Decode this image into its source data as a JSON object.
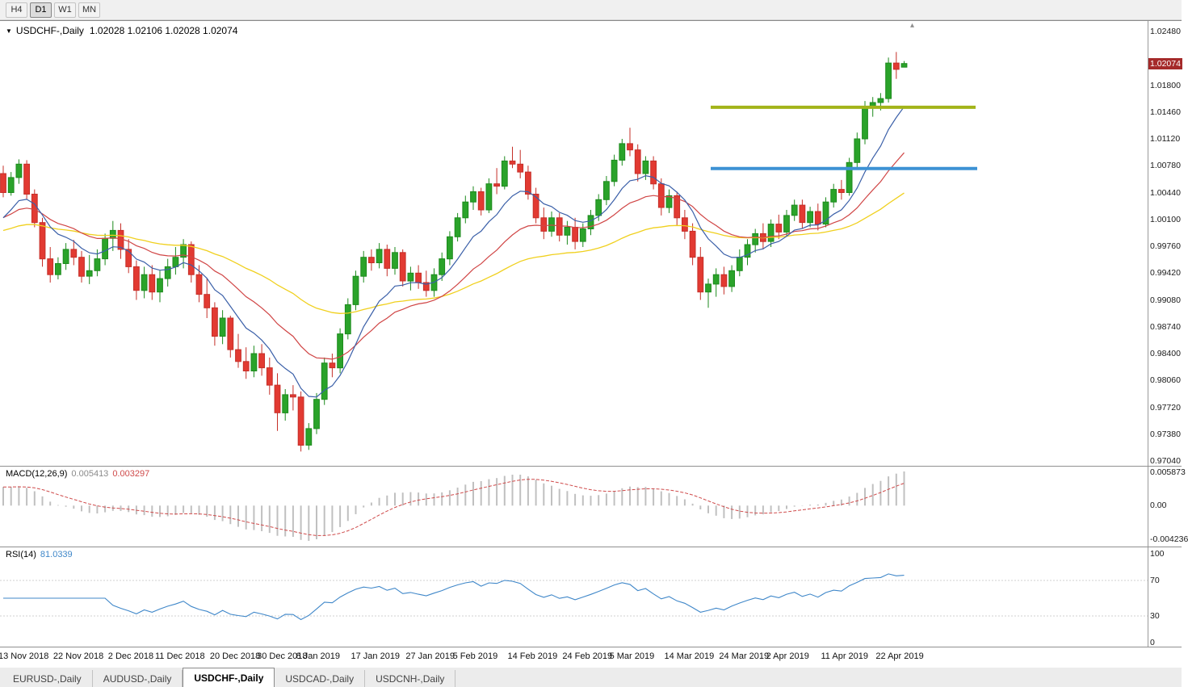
{
  "toolbar": {
    "timeframes": [
      {
        "label": "H4",
        "active": false
      },
      {
        "label": "D1",
        "active": true
      },
      {
        "label": "W1",
        "active": false
      },
      {
        "label": "MN",
        "active": false
      }
    ]
  },
  "chart": {
    "collapse_marker": "▼",
    "title": "USDCHF-,Daily",
    "ohlc_text": "1.02028 1.02106 1.02028 1.02074",
    "price_badge": "1.02074",
    "shift_marker": "▴",
    "price_axis": [
      "1.02480",
      "1.01800",
      "1.01460",
      "1.01120",
      "1.00780",
      "1.00440",
      "1.00100",
      "0.99760",
      "0.99420",
      "0.99080",
      "0.98740",
      "0.98400",
      "0.98060",
      "0.97720",
      "0.97380",
      "0.97040"
    ]
  },
  "macd": {
    "label": "MACD(12,26,9)",
    "value_main": "0.005413",
    "value_signal": "0.003297",
    "axis": [
      "0.005873",
      "0.00",
      "-0.004236"
    ],
    "histogram_color": "#c0c0c0",
    "signal_color": "#cf4a4a"
  },
  "rsi": {
    "label": "RSI(14)",
    "value": "81.0339",
    "axis": [
      "100",
      "70",
      "30",
      "0"
    ],
    "levels": [
      70,
      30
    ],
    "color": "#3f87c9"
  },
  "tabs": [
    {
      "label": "EURUSD-,Daily",
      "active": false
    },
    {
      "label": "AUDUSD-,Daily",
      "active": false
    },
    {
      "label": "USDCHF-,Daily",
      "active": true
    },
    {
      "label": "USDCAD-,Daily",
      "active": false
    },
    {
      "label": "USDCNH-,Daily",
      "active": false
    }
  ],
  "chart_data": {
    "type": "candlestick",
    "symbol": "USDCHF-",
    "timeframe": "Daily",
    "y_range": [
      0.9704,
      1.0248
    ],
    "current": {
      "open": 1.02028,
      "high": 1.02106,
      "low": 1.02028,
      "close": 1.02074
    },
    "style": {
      "up_fill": "#2aa32a",
      "up_stroke": "#1d8a1d",
      "down_fill": "#e23a32",
      "down_stroke": "#c52f28",
      "badge_bg": "#a52a2a"
    },
    "overlays": {
      "ma_fast": {
        "period": 9,
        "color": "#3a5fa8"
      },
      "ma_mid": {
        "period": 21,
        "color": "#d04545"
      },
      "ma_slow": {
        "period": 50,
        "color": "#f0d01e"
      }
    },
    "levels": [
      {
        "name": "resistance-upper",
        "price": 1.0152,
        "x1": 880,
        "x2": 1208,
        "color": "#a3b419"
      },
      {
        "name": "resistance-lower",
        "price": 1.00745,
        "x1": 880,
        "x2": 1210,
        "color": "#3d92d4"
      }
    ],
    "x_labels": [
      {
        "label": "13 Nov 2018",
        "bar": 0
      },
      {
        "label": "22 Nov 2018",
        "bar": 7
      },
      {
        "label": "2 Dec 2018",
        "bar": 14
      },
      {
        "label": "11 Dec 2018",
        "bar": 20
      },
      {
        "label": "20 Dec 2018",
        "bar": 27
      },
      {
        "label": "30 Dec 2018",
        "bar": 33
      },
      {
        "label": "8 Jan 2019",
        "bar": 38
      },
      {
        "label": "17 Jan 2019",
        "bar": 45
      },
      {
        "label": "27 Jan 2019",
        "bar": 52
      },
      {
        "label": "5 Feb 2019",
        "bar": 58
      },
      {
        "label": "14 Feb 2019",
        "bar": 65
      },
      {
        "label": "24 Feb 2019",
        "bar": 72
      },
      {
        "label": "5 Mar 2019",
        "bar": 78
      },
      {
        "label": "14 Mar 2019",
        "bar": 85
      },
      {
        "label": "24 Mar 2019",
        "bar": 92
      },
      {
        "label": "2 Apr 2019",
        "bar": 98
      },
      {
        "label": "11 Apr 2019",
        "bar": 105
      },
      {
        "label": "22 Apr 2019",
        "bar": 112
      }
    ],
    "ohlc": [
      [
        "2018-11-13",
        1.0068,
        1.0078,
        1.0038,
        1.0044
      ],
      [
        "2018-11-14",
        1.0044,
        1.007,
        1.004,
        1.0063
      ],
      [
        "2018-11-15",
        1.0063,
        1.0086,
        1.0055,
        1.008
      ],
      [
        "2018-11-16",
        1.008,
        1.0085,
        1.0035,
        1.0042
      ],
      [
        "2018-11-19",
        1.0042,
        1.0048,
        1.0,
        1.0006
      ],
      [
        "2018-11-20",
        1.0006,
        1.0012,
        0.995,
        0.996
      ],
      [
        "2018-11-21",
        0.996,
        0.9975,
        0.993,
        0.994
      ],
      [
        "2018-11-22",
        0.994,
        0.9962,
        0.9934,
        0.9954
      ],
      [
        "2018-11-23",
        0.9954,
        0.998,
        0.9946,
        0.9972
      ],
      [
        "2018-11-26",
        0.9972,
        0.9984,
        0.9952,
        0.9962
      ],
      [
        "2018-11-27",
        0.9962,
        0.997,
        0.993,
        0.9938
      ],
      [
        "2018-11-28",
        0.9938,
        0.9965,
        0.9928,
        0.9945
      ],
      [
        "2018-11-29",
        0.9945,
        0.9972,
        0.9938,
        0.996
      ],
      [
        "2018-11-30",
        0.996,
        0.9992,
        0.9952,
        0.9986
      ],
      [
        "2018-12-03",
        0.9986,
        1.0008,
        0.997,
        0.9996
      ],
      [
        "2018-12-04",
        0.9996,
        1.0005,
        0.996,
        0.9972
      ],
      [
        "2018-12-05",
        0.9972,
        0.9985,
        0.9942,
        0.995
      ],
      [
        "2018-12-06",
        0.995,
        0.9958,
        0.9908,
        0.992
      ],
      [
        "2018-12-07",
        0.992,
        0.995,
        0.991,
        0.994
      ],
      [
        "2018-12-10",
        0.994,
        0.9952,
        0.9908,
        0.9918
      ],
      [
        "2018-12-11",
        0.9918,
        0.9945,
        0.9905,
        0.9935
      ],
      [
        "2018-12-12",
        0.9935,
        0.996,
        0.9925,
        0.995
      ],
      [
        "2018-12-13",
        0.995,
        0.9975,
        0.994,
        0.9962
      ],
      [
        "2018-12-14",
        0.9962,
        0.9985,
        0.9948,
        0.9978
      ],
      [
        "2018-12-17",
        0.9978,
        0.9982,
        0.993,
        0.994
      ],
      [
        "2018-12-18",
        0.994,
        0.9952,
        0.9905,
        0.9915
      ],
      [
        "2018-12-19",
        0.9915,
        0.9935,
        0.9885,
        0.9898
      ],
      [
        "2018-12-20",
        0.9898,
        0.9905,
        0.985,
        0.9862
      ],
      [
        "2018-12-21",
        0.9862,
        0.9895,
        0.9852,
        0.9885
      ],
      [
        "2018-12-24",
        0.9885,
        0.9888,
        0.9835,
        0.9845
      ],
      [
        "2018-12-26",
        0.9845,
        0.9865,
        0.9822,
        0.983
      ],
      [
        "2018-12-27",
        0.983,
        0.9848,
        0.9808,
        0.9818
      ],
      [
        "2018-12-28",
        0.9818,
        0.985,
        0.981,
        0.984
      ],
      [
        "2018-12-31",
        0.984,
        0.9852,
        0.9812,
        0.9822
      ],
      [
        "2019-01-02",
        0.9822,
        0.9835,
        0.9788,
        0.98
      ],
      [
        "2019-01-03",
        0.98,
        0.9815,
        0.9742,
        0.9765
      ],
      [
        "2019-01-04",
        0.9765,
        0.9795,
        0.9755,
        0.9788
      ],
      [
        "2019-01-07",
        0.9788,
        0.98,
        0.9768,
        0.9785
      ],
      [
        "2019-01-08",
        0.9785,
        0.9792,
        0.9716,
        0.9724
      ],
      [
        "2019-01-09",
        0.9724,
        0.9752,
        0.9718,
        0.9745
      ],
      [
        "2019-01-10",
        0.9745,
        0.979,
        0.9738,
        0.9782
      ],
      [
        "2019-01-11",
        0.9782,
        0.9835,
        0.9775,
        0.9828
      ],
      [
        "2019-01-14",
        0.9828,
        0.984,
        0.981,
        0.9822
      ],
      [
        "2019-01-15",
        0.9822,
        0.9872,
        0.9815,
        0.9865
      ],
      [
        "2019-01-16",
        0.9865,
        0.991,
        0.9858,
        0.9902
      ],
      [
        "2019-01-17",
        0.9902,
        0.9945,
        0.9895,
        0.9938
      ],
      [
        "2019-01-18",
        0.9938,
        0.997,
        0.993,
        0.9962
      ],
      [
        "2019-01-21",
        0.9962,
        0.9972,
        0.9945,
        0.9955
      ],
      [
        "2019-01-22",
        0.9955,
        0.998,
        0.9948,
        0.9972
      ],
      [
        "2019-01-23",
        0.9972,
        0.9978,
        0.9938,
        0.9948
      ],
      [
        "2019-01-24",
        0.9948,
        0.9975,
        0.994,
        0.9968
      ],
      [
        "2019-01-25",
        0.9968,
        0.9972,
        0.9925,
        0.9932
      ],
      [
        "2019-01-28",
        0.9932,
        0.995,
        0.992,
        0.9942
      ],
      [
        "2019-01-29",
        0.9942,
        0.9952,
        0.9922,
        0.993
      ],
      [
        "2019-01-30",
        0.993,
        0.9945,
        0.9912,
        0.992
      ],
      [
        "2019-01-31",
        0.992,
        0.9948,
        0.9912,
        0.994
      ],
      [
        "2019-02-01",
        0.994,
        0.9968,
        0.9932,
        0.996
      ],
      [
        "2019-02-04",
        0.996,
        0.9995,
        0.9952,
        0.9988
      ],
      [
        "2019-02-05",
        0.9988,
        1.0018,
        0.9982,
        1.0012
      ],
      [
        "2019-02-06",
        1.0012,
        1.004,
        1.0005,
        1.0032
      ],
      [
        "2019-02-07",
        1.0032,
        1.0052,
        1.0022,
        1.0045
      ],
      [
        "2019-02-08",
        1.0045,
        1.005,
        1.0015,
        1.0022
      ],
      [
        "2019-02-11",
        1.0022,
        1.0062,
        1.0018,
        1.0055
      ],
      [
        "2019-02-12",
        1.0055,
        1.0075,
        1.0042,
        1.0052
      ],
      [
        "2019-02-13",
        1.0052,
        1.009,
        1.0048,
        1.0084
      ],
      [
        "2019-02-14",
        1.0084,
        1.0102,
        1.0075,
        1.008
      ],
      [
        "2019-02-15",
        1.008,
        1.0098,
        1.0062,
        1.007
      ],
      [
        "2019-02-18",
        1.007,
        1.0078,
        1.0035,
        1.0042
      ],
      [
        "2019-02-19",
        1.0042,
        1.005,
        1.0005,
        1.0012
      ],
      [
        "2019-02-20",
        1.0012,
        1.0025,
        0.9985,
        0.9995
      ],
      [
        "2019-02-21",
        0.9995,
        1.002,
        0.9988,
        1.0012
      ],
      [
        "2019-02-22",
        1.0012,
        1.0018,
        0.9982,
        0.999
      ],
      [
        "2019-02-25",
        0.999,
        1.0008,
        0.9978,
        1.0
      ],
      [
        "2019-02-26",
        1.0,
        1.0012,
        0.9972,
        0.9982
      ],
      [
        "2019-02-27",
        0.9982,
        1.0005,
        0.9975,
        0.9998
      ],
      [
        "2019-02-28",
        0.9998,
        1.0022,
        0.999,
        1.0015
      ],
      [
        "2019-03-01",
        1.0015,
        1.0042,
        1.0008,
        1.0035
      ],
      [
        "2019-03-04",
        1.0035,
        1.0065,
        1.0028,
        1.0058
      ],
      [
        "2019-03-05",
        1.0058,
        1.0092,
        1.0052,
        1.0085
      ],
      [
        "2019-03-06",
        1.0085,
        1.0112,
        1.0078,
        1.0106
      ],
      [
        "2019-03-07",
        1.0106,
        1.0126,
        1.009,
        1.0098
      ],
      [
        "2019-03-08",
        1.0098,
        1.0105,
        1.0058,
        1.0068
      ],
      [
        "2019-03-11",
        1.0068,
        1.009,
        1.006,
        1.0084
      ],
      [
        "2019-03-12",
        1.0084,
        1.009,
        1.0048,
        1.0055
      ],
      [
        "2019-03-13",
        1.0055,
        1.0062,
        1.0015,
        1.0025
      ],
      [
        "2019-03-14",
        1.0025,
        1.0048,
        1.0018,
        1.004
      ],
      [
        "2019-03-15",
        1.004,
        1.0045,
        1.0002,
        1.0012
      ],
      [
        "2019-03-18",
        1.0012,
        1.0022,
        0.9985,
        0.9995
      ],
      [
        "2019-03-19",
        0.9995,
        1.0005,
        0.9952,
        0.9962
      ],
      [
        "2019-03-20",
        0.9962,
        0.9975,
        0.9908,
        0.9918
      ],
      [
        "2019-03-21",
        0.9918,
        0.9935,
        0.9898,
        0.9928
      ],
      [
        "2019-03-22",
        0.9928,
        0.9948,
        0.9912,
        0.994
      ],
      [
        "2019-03-25",
        0.994,
        0.995,
        0.9915,
        0.9925
      ],
      [
        "2019-03-26",
        0.9925,
        0.9952,
        0.9918,
        0.9945
      ],
      [
        "2019-03-27",
        0.9945,
        0.9972,
        0.9938,
        0.9962
      ],
      [
        "2019-03-28",
        0.9962,
        0.9985,
        0.9952,
        0.9978
      ],
      [
        "2019-03-29",
        0.9978,
        0.9998,
        0.9968,
        0.9992
      ],
      [
        "2019-04-01",
        0.9992,
        1.0005,
        0.9972,
        0.9982
      ],
      [
        "2019-04-02",
        0.9982,
        1.001,
        0.9975,
        1.0004
      ],
      [
        "2019-04-03",
        1.0004,
        1.0016,
        0.9985,
        0.9994
      ],
      [
        "2019-04-04",
        0.9994,
        1.0022,
        0.9988,
        1.0015
      ],
      [
        "2019-04-05",
        1.0015,
        1.0035,
        1.0008,
        1.0028
      ],
      [
        "2019-04-08",
        1.0028,
        1.0035,
        0.9998,
        1.0006
      ],
      [
        "2019-04-09",
        1.0006,
        1.0026,
        1.0,
        1.002
      ],
      [
        "2019-04-10",
        1.002,
        1.003,
        0.9996,
        1.0004
      ],
      [
        "2019-04-11",
        1.0004,
        1.0038,
        1.0,
        1.0032
      ],
      [
        "2019-04-12",
        1.0032,
        1.0055,
        1.0025,
        1.0048
      ],
      [
        "2019-04-15",
        1.0048,
        1.006,
        1.0035,
        1.0044
      ],
      [
        "2019-04-16",
        1.0044,
        1.0088,
        1.004,
        1.0082
      ],
      [
        "2019-04-17",
        1.0082,
        1.012,
        1.0075,
        1.0112
      ],
      [
        "2019-04-18",
        1.0112,
        1.016,
        1.0105,
        1.0152
      ],
      [
        "2019-04-19",
        1.0152,
        1.0165,
        1.014,
        1.0158
      ],
      [
        "2019-04-22",
        1.0158,
        1.017,
        1.0148,
        1.0163
      ],
      [
        "2019-04-23",
        1.0163,
        1.0215,
        1.0158,
        1.0208
      ],
      [
        "2019-04-24",
        1.0208,
        1.0222,
        1.0188,
        1.02
      ],
      [
        "2019-04-25",
        1.02028,
        1.02106,
        1.02028,
        1.02074
      ]
    ]
  }
}
